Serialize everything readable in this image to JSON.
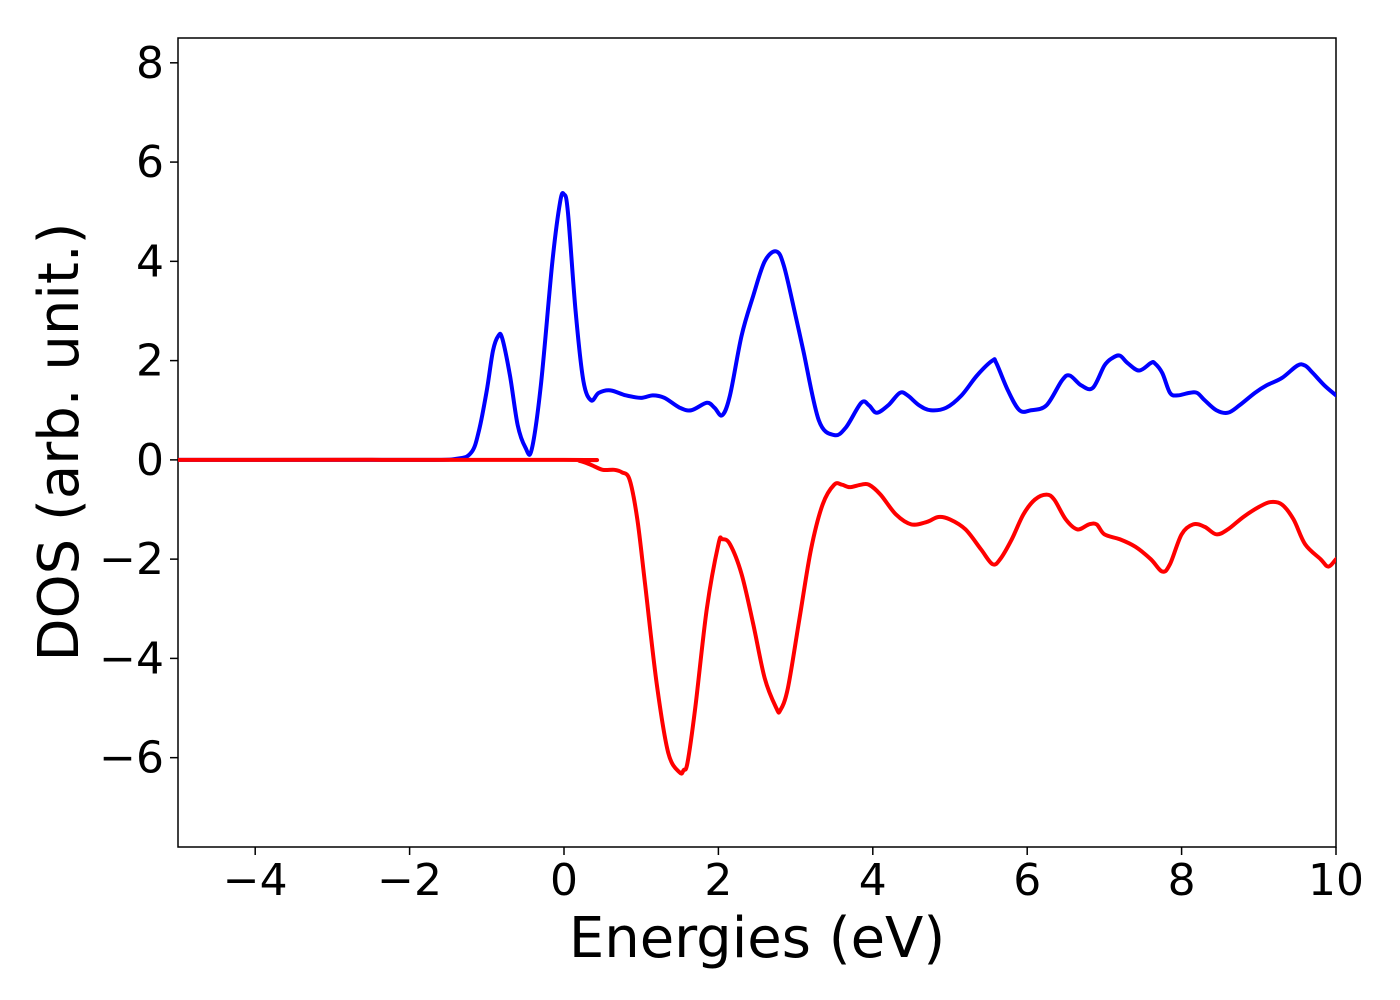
{
  "chart_data": {
    "type": "line",
    "xlabel": "Energies (eV)",
    "ylabel": "DOS (arb. unit.)",
    "xlim": [
      -5,
      10
    ],
    "ylim": [
      -7.8,
      8.5
    ],
    "xticks": [
      -4,
      -2,
      0,
      2,
      4,
      6,
      8,
      10
    ],
    "xtick_labels": [
      "−4",
      "−2",
      "0",
      "2",
      "4",
      "6",
      "8",
      "10"
    ],
    "yticks": [
      -6,
      -4,
      -2,
      0,
      2,
      4,
      6,
      8
    ],
    "ytick_labels": [
      "−6",
      "−4",
      "−2",
      "0",
      "2",
      "4",
      "6",
      "8"
    ],
    "grid": false,
    "series": [
      {
        "color": "#0000ff",
        "x": [
          -5.0,
          -2.0,
          -1.4,
          -1.2,
          -1.1,
          -1.0,
          -0.92,
          -0.85,
          -0.8,
          -0.7,
          -0.6,
          -0.5,
          -0.42,
          -0.3,
          -0.15,
          -0.05,
          0.0,
          0.05,
          0.15,
          0.25,
          0.35,
          0.45,
          0.6,
          0.8,
          1.0,
          1.15,
          1.3,
          1.5,
          1.65,
          1.85,
          1.95,
          2.05,
          2.15,
          2.3,
          2.45,
          2.6,
          2.75,
          2.85,
          3.0,
          3.1,
          3.3,
          3.5,
          3.65,
          3.85,
          3.95,
          4.05,
          4.2,
          4.35,
          4.45,
          4.6,
          4.75,
          4.95,
          5.15,
          5.35,
          5.55,
          5.6,
          5.75,
          5.9,
          6.05,
          6.25,
          6.45,
          6.55,
          6.7,
          6.85,
          7.0,
          7.1,
          7.2,
          7.3,
          7.45,
          7.6,
          7.65,
          7.75,
          7.85,
          7.95,
          8.1,
          8.2,
          8.3,
          8.45,
          8.6,
          8.75,
          8.95,
          9.1,
          9.3,
          9.5,
          9.6,
          9.7,
          9.85,
          10.0
        ],
        "values": [
          0.0,
          0.0,
          0.02,
          0.15,
          0.6,
          1.4,
          2.2,
          2.5,
          2.45,
          1.7,
          0.7,
          0.25,
          0.2,
          1.5,
          4.0,
          5.2,
          5.35,
          5.0,
          3.0,
          1.6,
          1.2,
          1.35,
          1.4,
          1.3,
          1.25,
          1.3,
          1.25,
          1.05,
          1.0,
          1.15,
          1.05,
          0.9,
          1.3,
          2.5,
          3.3,
          4.0,
          4.2,
          3.9,
          2.9,
          2.2,
          0.8,
          0.5,
          0.65,
          1.15,
          1.1,
          0.95,
          1.1,
          1.35,
          1.3,
          1.1,
          1.0,
          1.05,
          1.3,
          1.7,
          2.0,
          1.95,
          1.4,
          1.0,
          1.0,
          1.1,
          1.6,
          1.7,
          1.5,
          1.45,
          1.9,
          2.05,
          2.1,
          1.95,
          1.8,
          1.95,
          1.95,
          1.75,
          1.35,
          1.3,
          1.35,
          1.35,
          1.2,
          1.0,
          0.95,
          1.1,
          1.35,
          1.5,
          1.65,
          1.9,
          1.9,
          1.75,
          1.5,
          1.3
        ]
      },
      {
        "color": "#ff0000",
        "x": [
          -5.0,
          0.0,
          0.2,
          0.35,
          0.5,
          0.65,
          0.75,
          0.85,
          0.95,
          1.05,
          1.2,
          1.35,
          1.5,
          1.55,
          1.6,
          1.7,
          1.85,
          2.0,
          2.05,
          2.15,
          2.3,
          2.45,
          2.6,
          2.75,
          2.8,
          2.9,
          3.05,
          3.2,
          3.35,
          3.5,
          3.6,
          3.7,
          3.85,
          3.95,
          4.1,
          4.3,
          4.5,
          4.7,
          4.85,
          5.0,
          5.2,
          5.4,
          5.55,
          5.65,
          5.8,
          5.95,
          6.1,
          6.25,
          6.35,
          6.5,
          6.65,
          6.8,
          6.9,
          7.0,
          7.2,
          7.4,
          7.6,
          7.75,
          7.85,
          8.0,
          8.15,
          8.3,
          8.45,
          8.6,
          8.8,
          9.0,
          9.15,
          9.3,
          9.45,
          9.6,
          9.8,
          9.9,
          10.0
        ],
        "values": [
          0.0,
          0.0,
          -0.02,
          -0.1,
          -0.2,
          -0.2,
          -0.25,
          -0.4,
          -1.2,
          -2.5,
          -4.5,
          -5.9,
          -6.3,
          -6.25,
          -6.1,
          -5.0,
          -3.0,
          -1.7,
          -1.6,
          -1.7,
          -2.3,
          -3.3,
          -4.4,
          -5.0,
          -5.05,
          -4.6,
          -3.2,
          -1.8,
          -0.9,
          -0.5,
          -0.5,
          -0.55,
          -0.5,
          -0.5,
          -0.7,
          -1.1,
          -1.3,
          -1.25,
          -1.15,
          -1.2,
          -1.4,
          -1.8,
          -2.1,
          -2.0,
          -1.6,
          -1.1,
          -0.8,
          -0.7,
          -0.8,
          -1.2,
          -1.4,
          -1.3,
          -1.3,
          -1.5,
          -1.6,
          -1.75,
          -2.0,
          -2.25,
          -2.1,
          -1.5,
          -1.3,
          -1.35,
          -1.5,
          -1.4,
          -1.15,
          -0.95,
          -0.85,
          -0.9,
          -1.2,
          -1.7,
          -2.0,
          -2.15,
          -2.0
        ]
      }
    ]
  }
}
